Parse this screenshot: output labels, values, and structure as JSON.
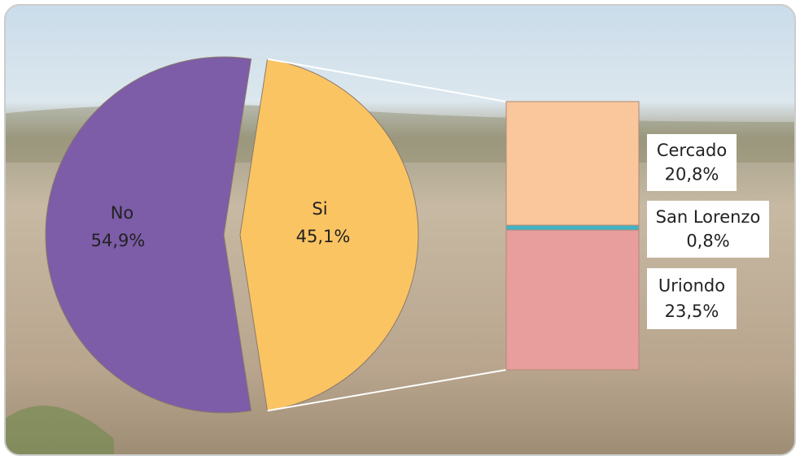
{
  "chart_data": [
    {
      "type": "pie",
      "categories": [
        "No",
        "Si"
      ],
      "values": [
        54.9,
        45.1
      ],
      "value_labels": [
        "54,9%",
        "45,1%"
      ],
      "colors": [
        "#7d5ca8",
        "#fbc462"
      ]
    },
    {
      "type": "stacked-bar",
      "series": [
        {
          "name": "Cercado",
          "color": "#f9c79b",
          "values": [
            20.8
          ],
          "value_labels": [
            "20,8%"
          ]
        },
        {
          "name": "San Lorenzo",
          "color": "#3fb4c6",
          "values": [
            0.8
          ],
          "value_labels": [
            "0,8%"
          ]
        },
        {
          "name": "Uriondo",
          "color": "#e89e9c",
          "values": [
            23.5
          ],
          "value_labels": [
            "23,5%"
          ]
        }
      ]
    }
  ]
}
